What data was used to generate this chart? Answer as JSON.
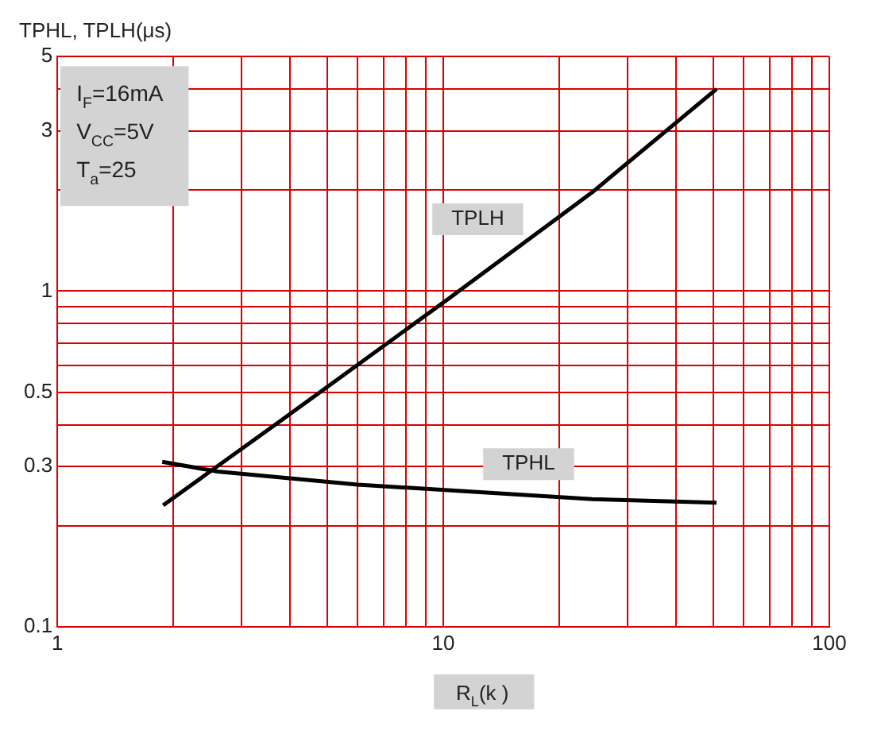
{
  "chart_data": {
    "type": "line",
    "ylabel": "TPHL, TPLH(μs)",
    "xlabel": "R$_{L}$(k )",
    "annotations": [
      "I$_{F}$=16mA",
      "V$_{CC}$=5V",
      "T$_{a}$=25"
    ],
    "log": "xy",
    "grid": true,
    "legend": false,
    "marker": "none",
    "line_style": "solid",
    "xlim": [
      1,
      100
    ],
    "ylim": [
      0.1,
      5
    ],
    "xticks": [
      1,
      {
        "value": 2,
        "label": null
      },
      {
        "value": 3,
        "label": null
      },
      {
        "value": 4,
        "label": null
      },
      {
        "value": 5,
        "label": null
      },
      {
        "value": 6,
        "label": null
      },
      {
        "value": 7,
        "label": null
      },
      {
        "value": 8,
        "label": null
      },
      {
        "value": 9,
        "label": null
      },
      10,
      {
        "value": 20,
        "label": null
      },
      {
        "value": 30,
        "label": null
      },
      {
        "value": 40,
        "label": null
      },
      {
        "value": 50,
        "label": null
      },
      {
        "value": 60,
        "label": null
      },
      {
        "value": 70,
        "label": null
      },
      {
        "value": 80,
        "label": null
      },
      {
        "value": 90,
        "label": null
      },
      100
    ],
    "yticks": [
      0.1,
      {
        "value": 0.2,
        "label": null
      },
      0.3,
      {
        "value": 0.4,
        "label": null
      },
      0.5,
      {
        "value": 0.6,
        "label": null
      },
      {
        "value": 0.7,
        "label": null
      },
      {
        "value": 0.8,
        "label": null
      },
      {
        "value": 0.9,
        "label": null
      },
      1,
      {
        "value": 2,
        "label": null
      },
      3,
      {
        "value": 4,
        "label": null
      },
      5
    ],
    "series": [
      {
        "name": "TPLH",
        "color": "#000000",
        "x": [
          1.88,
          3.78,
          10.2,
          24.3,
          51
        ],
        "values": [
          0.23,
          0.41,
          0.94,
          1.97,
          4
        ]
      },
      {
        "name": "TPHL",
        "color": "#000000",
        "x": [
          1.87,
          2.6,
          6,
          24.3,
          51
        ],
        "values": [
          0.31,
          0.29,
          0.265,
          0.24,
          0.234
        ]
      }
    ]
  }
}
